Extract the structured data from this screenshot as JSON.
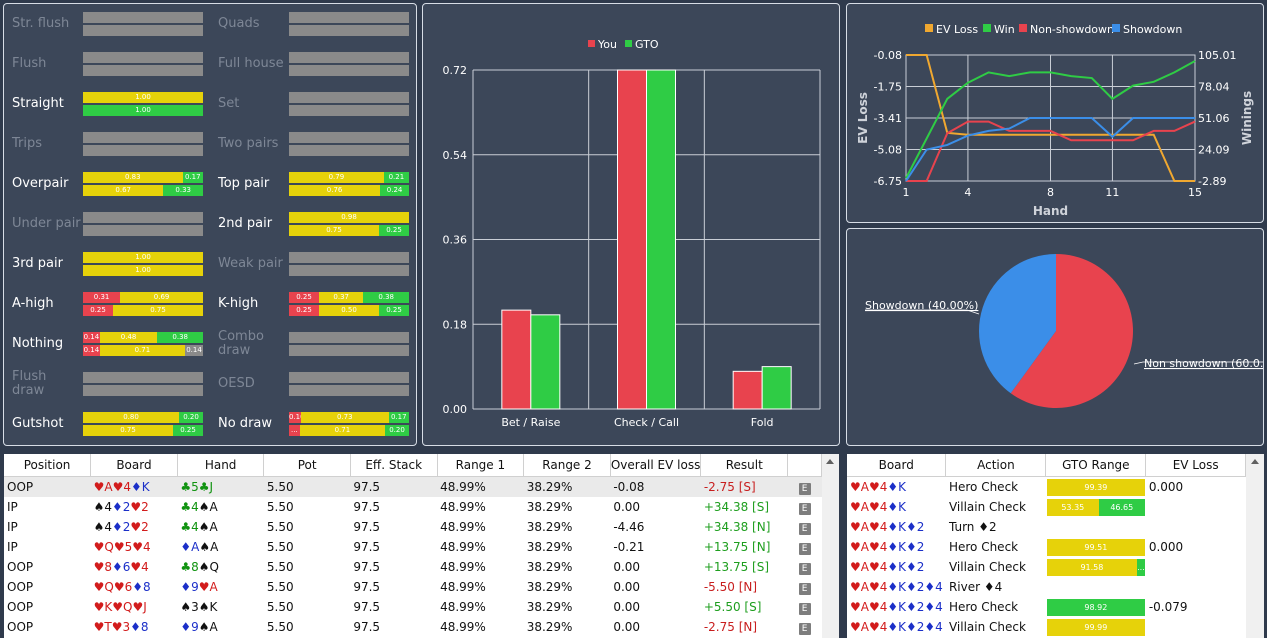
{
  "colors": {
    "you": "#e8434e",
    "gto": "#2fcc45",
    "yellow": "#e6d20a",
    "red": "#e8434e",
    "green": "#2fcc45",
    "grey": "#8a8a8a",
    "ev_loss": "#f0a830",
    "win": "#2fcc45",
    "non_showdown": "#e8434e",
    "showdown": "#3b8ee8"
  },
  "categories": [
    {
      "label": "Str. flush",
      "dim": true,
      "bars": [
        [
          [
            "gr",
            1,
            ""
          ]
        ],
        [
          [
            "gr",
            1,
            ""
          ]
        ]
      ]
    },
    {
      "label": "Quads",
      "dim": true,
      "bars": [
        [
          [
            "gr",
            1,
            ""
          ]
        ],
        [
          [
            "gr",
            1,
            ""
          ]
        ]
      ]
    },
    {
      "label": "Flush",
      "dim": true,
      "bars": [
        [
          [
            "gr",
            1,
            ""
          ]
        ],
        [
          [
            "gr",
            1,
            ""
          ]
        ]
      ]
    },
    {
      "label": "Full house",
      "dim": true,
      "bars": [
        [
          [
            "gr",
            1,
            ""
          ]
        ],
        [
          [
            "gr",
            1,
            ""
          ]
        ]
      ]
    },
    {
      "label": "Straight",
      "dim": false,
      "bars": [
        [
          [
            "y",
            1,
            "1.00"
          ]
        ],
        [
          [
            "g",
            1,
            "1.00"
          ]
        ]
      ]
    },
    {
      "label": "Set",
      "dim": true,
      "bars": [
        [
          [
            "gr",
            1,
            ""
          ]
        ],
        [
          [
            "gr",
            1,
            ""
          ]
        ]
      ]
    },
    {
      "label": "Trips",
      "dim": true,
      "bars": [
        [
          [
            "gr",
            1,
            ""
          ]
        ],
        [
          [
            "gr",
            1,
            ""
          ]
        ]
      ]
    },
    {
      "label": "Two pairs",
      "dim": true,
      "bars": [
        [
          [
            "gr",
            1,
            ""
          ]
        ],
        [
          [
            "gr",
            1,
            ""
          ]
        ]
      ]
    },
    {
      "label": "Overpair",
      "dim": false,
      "bars": [
        [
          [
            "y",
            0.83,
            "0.83"
          ],
          [
            "g",
            0.17,
            "0.17"
          ]
        ],
        [
          [
            "y",
            0.67,
            "0.67"
          ],
          [
            "g",
            0.33,
            "0.33"
          ]
        ]
      ]
    },
    {
      "label": "Top pair",
      "dim": false,
      "bars": [
        [
          [
            "y",
            0.79,
            "0.79"
          ],
          [
            "g",
            0.21,
            "0.21"
          ]
        ],
        [
          [
            "y",
            0.76,
            "0.76"
          ],
          [
            "g",
            0.24,
            "0.24"
          ]
        ]
      ]
    },
    {
      "label": "Under pair",
      "dim": true,
      "bars": [
        [
          [
            "gr",
            1,
            ""
          ]
        ],
        [
          [
            "gr",
            1,
            ""
          ]
        ]
      ]
    },
    {
      "label": "2nd pair",
      "dim": false,
      "bars": [
        [
          [
            "y",
            1,
            "0.98"
          ]
        ],
        [
          [
            "y",
            0.75,
            "0.75"
          ],
          [
            "g",
            0.25,
            "0.25"
          ]
        ]
      ]
    },
    {
      "label": "3rd pair",
      "dim": false,
      "bars": [
        [
          [
            "y",
            1,
            "1.00"
          ]
        ],
        [
          [
            "y",
            1,
            "1.00"
          ]
        ]
      ]
    },
    {
      "label": "Weak pair",
      "dim": true,
      "bars": [
        [
          [
            "gr",
            1,
            ""
          ]
        ],
        [
          [
            "gr",
            1,
            ""
          ]
        ]
      ]
    },
    {
      "label": "A-high",
      "dim": false,
      "bars": [
        [
          [
            "r",
            0.31,
            "0.31"
          ],
          [
            "y",
            0.69,
            "0.69"
          ]
        ],
        [
          [
            "r",
            0.25,
            "0.25"
          ],
          [
            "y",
            0.75,
            "0.75"
          ]
        ]
      ]
    },
    {
      "label": "K-high",
      "dim": false,
      "bars": [
        [
          [
            "r",
            0.25,
            "0.25"
          ],
          [
            "y",
            0.37,
            "0.37"
          ],
          [
            "g",
            0.38,
            "0.38"
          ]
        ],
        [
          [
            "r",
            0.25,
            "0.25"
          ],
          [
            "y",
            0.5,
            "0.50"
          ],
          [
            "g",
            0.25,
            "0.25"
          ]
        ]
      ]
    },
    {
      "label": "Nothing",
      "dim": false,
      "bars": [
        [
          [
            "r",
            0.14,
            "0.14"
          ],
          [
            "y",
            0.48,
            "0.48"
          ],
          [
            "g",
            0.38,
            "0.38"
          ]
        ],
        [
          [
            "r",
            0.14,
            "0.14"
          ],
          [
            "y",
            0.71,
            "0.71"
          ],
          [
            "gr",
            0.15,
            "0.14"
          ]
        ]
      ]
    },
    {
      "label": "Combo draw",
      "dim": true,
      "bars": [
        [
          [
            "gr",
            1,
            ""
          ]
        ],
        [
          [
            "gr",
            1,
            ""
          ]
        ]
      ]
    },
    {
      "label": "Flush draw",
      "dim": true,
      "bars": [
        [
          [
            "gr",
            1,
            ""
          ]
        ],
        [
          [
            "gr",
            1,
            ""
          ]
        ]
      ]
    },
    {
      "label": "OESD",
      "dim": true,
      "bars": [
        [
          [
            "gr",
            1,
            ""
          ]
        ],
        [
          [
            "gr",
            1,
            ""
          ]
        ]
      ]
    },
    {
      "label": "Gutshot",
      "dim": false,
      "bars": [
        [
          [
            "y",
            0.8,
            "0.80"
          ],
          [
            "g",
            0.2,
            "0.20"
          ]
        ],
        [
          [
            "y",
            0.75,
            "0.75"
          ],
          [
            "g",
            0.25,
            "0.25"
          ]
        ]
      ]
    },
    {
      "label": "No draw",
      "dim": false,
      "bars": [
        [
          [
            "r",
            0.1,
            "0.10"
          ],
          [
            "y",
            0.73,
            "0.73"
          ],
          [
            "g",
            0.17,
            "0.17"
          ]
        ],
        [
          [
            "r",
            0.09,
            "..."
          ],
          [
            "y",
            0.71,
            "0.71"
          ],
          [
            "g",
            0.2,
            "0.20"
          ]
        ]
      ]
    }
  ],
  "chart_data": [
    {
      "type": "bar",
      "categories": [
        "Bet / Raise",
        "Check / Call",
        "Fold"
      ],
      "series": [
        {
          "name": "You",
          "values": [
            0.21,
            0.72,
            0.08
          ]
        },
        {
          "name": "GTO",
          "values": [
            0.2,
            0.72,
            0.09
          ]
        }
      ],
      "yticks": [
        "0.00",
        "0.18",
        "0.36",
        "0.54",
        "0.72"
      ],
      "ylim": [
        0,
        0.72
      ]
    },
    {
      "type": "line",
      "legend": [
        "EV Loss",
        "Win",
        "Non-showdown",
        "Showdown"
      ],
      "ylabel": "EV Loss",
      "y2label": "Winings",
      "xlabel": "Hand",
      "x": [
        1,
        2,
        3,
        4,
        5,
        6,
        7,
        8,
        9,
        10,
        11,
        12,
        13,
        14,
        15
      ],
      "xticks": [
        "1",
        "4",
        "8",
        "11",
        "15"
      ],
      "yticks": [
        "-0.08",
        "-1.75",
        "-3.41",
        "-5.08",
        "-6.75"
      ],
      "y2ticks": [
        "105.01",
        "78.04",
        "51.06",
        "24.09",
        "-2.89"
      ],
      "ylim": [
        -6.75,
        -0.08
      ],
      "y2lim": [
        -2.89,
        105.01
      ],
      "series": [
        {
          "name": "EV Loss",
          "axis": "left",
          "values": [
            -0.08,
            -0.08,
            -4.2,
            -4.3,
            -4.3,
            -4.3,
            -4.3,
            -4.3,
            -4.3,
            -4.3,
            -4.3,
            -4.3,
            -4.3,
            -6.75,
            -6.75
          ]
        },
        {
          "name": "Win",
          "axis": "left",
          "values": [
            -6.6,
            -4.5,
            -2.4,
            -1.55,
            -1.0,
            -1.2,
            -1.0,
            -1.0,
            -1.2,
            -1.3,
            -2.4,
            -1.7,
            -1.5,
            -1.0,
            -0.4
          ]
        },
        {
          "name": "Non-showdown",
          "axis": "right",
          "values": [
            -2.89,
            -2.89,
            38,
            48,
            48,
            40,
            40,
            40,
            32,
            32,
            32,
            32,
            40,
            40,
            48
          ]
        },
        {
          "name": "Showdown",
          "axis": "right",
          "values": [
            -2.89,
            24,
            28,
            36,
            40,
            42,
            51.06,
            51.06,
            51.06,
            51.06,
            35,
            51.06,
            51.06,
            51.06,
            51.06
          ]
        }
      ]
    },
    {
      "type": "pie",
      "slices": [
        {
          "label": "Non showdown (60.0...",
          "value": 60
        },
        {
          "label": "Showdown (40.00%)",
          "value": 40
        }
      ]
    }
  ],
  "hands_table": {
    "headers": [
      "Position",
      "Board",
      "Hand",
      "Pot",
      "Eff. Stack",
      "Range 1",
      "Range 2",
      "Overall EV loss",
      "Result",
      ""
    ],
    "rows": [
      {
        "pos": "OOP",
        "board": [
          [
            "r",
            "♥A"
          ],
          [
            "r",
            "♥4"
          ],
          [
            "b",
            "♦K"
          ]
        ],
        "hand": [
          [
            "g",
            "♣5"
          ],
          [
            "g",
            "♣J"
          ]
        ],
        "pot": "5.50",
        "stack": "97.5",
        "r1": "48.99%",
        "r2": "38.29%",
        "ev": "-0.08",
        "result": "-2.75 [S]",
        "neg": true
      },
      {
        "pos": "IP",
        "board": [
          [
            "k",
            "♠4"
          ],
          [
            "b",
            "♦2"
          ],
          [
            "r",
            "♥2"
          ]
        ],
        "hand": [
          [
            "g",
            "♣4"
          ],
          [
            "k",
            "♠A"
          ]
        ],
        "pot": "5.50",
        "stack": "97.5",
        "r1": "48.99%",
        "r2": "38.29%",
        "ev": "0.00",
        "result": "+34.38 [S]",
        "neg": false
      },
      {
        "pos": "IP",
        "board": [
          [
            "k",
            "♠4"
          ],
          [
            "b",
            "♦2"
          ],
          [
            "r",
            "♥2"
          ]
        ],
        "hand": [
          [
            "g",
            "♣4"
          ],
          [
            "k",
            "♠A"
          ]
        ],
        "pot": "5.50",
        "stack": "97.5",
        "r1": "48.99%",
        "r2": "38.29%",
        "ev": "-4.46",
        "result": "+34.38 [N]",
        "neg": false
      },
      {
        "pos": "IP",
        "board": [
          [
            "r",
            "♥Q"
          ],
          [
            "r",
            "♥5"
          ],
          [
            "r",
            "♥4"
          ]
        ],
        "hand": [
          [
            "b",
            "♦A"
          ],
          [
            "k",
            "♠A"
          ]
        ],
        "pot": "5.50",
        "stack": "97.5",
        "r1": "48.99%",
        "r2": "38.29%",
        "ev": "-0.21",
        "result": "+13.75 [N]",
        "neg": false
      },
      {
        "pos": "OOP",
        "board": [
          [
            "r",
            "♥8"
          ],
          [
            "b",
            "♦6"
          ],
          [
            "r",
            "♥4"
          ]
        ],
        "hand": [
          [
            "g",
            "♣8"
          ],
          [
            "k",
            "♠Q"
          ]
        ],
        "pot": "5.50",
        "stack": "97.5",
        "r1": "48.99%",
        "r2": "38.29%",
        "ev": "0.00",
        "result": "+13.75 [S]",
        "neg": false
      },
      {
        "pos": "OOP",
        "board": [
          [
            "r",
            "♥Q"
          ],
          [
            "r",
            "♥6"
          ],
          [
            "b",
            "♦8"
          ]
        ],
        "hand": [
          [
            "b",
            "♦9"
          ],
          [
            "r",
            "♥A"
          ]
        ],
        "pot": "5.50",
        "stack": "97.5",
        "r1": "48.99%",
        "r2": "38.29%",
        "ev": "0.00",
        "result": "-5.50 [N]",
        "neg": true
      },
      {
        "pos": "OOP",
        "board": [
          [
            "r",
            "♥K"
          ],
          [
            "r",
            "♥Q"
          ],
          [
            "r",
            "♥J"
          ]
        ],
        "hand": [
          [
            "k",
            "♠3"
          ],
          [
            "k",
            "♠K"
          ]
        ],
        "pot": "5.50",
        "stack": "97.5",
        "r1": "48.99%",
        "r2": "38.29%",
        "ev": "0.00",
        "result": "+5.50 [S]",
        "neg": false
      },
      {
        "pos": "OOP",
        "board": [
          [
            "r",
            "♥T"
          ],
          [
            "r",
            "♥3"
          ],
          [
            "b",
            "♦8"
          ]
        ],
        "hand": [
          [
            "b",
            "♦9"
          ],
          [
            "k",
            "♠A"
          ]
        ],
        "pot": "5.50",
        "stack": "97.5",
        "r1": "48.99%",
        "r2": "38.29%",
        "ev": "0.00",
        "result": "-2.75 [N]",
        "neg": true
      }
    ],
    "e_label": "E"
  },
  "action_table": {
    "headers": [
      "Board",
      "Action",
      "GTO Range",
      "EV Loss"
    ],
    "rows": [
      {
        "board": [
          [
            "r",
            "♥A"
          ],
          [
            "r",
            "♥4"
          ],
          [
            "b",
            "♦K"
          ]
        ],
        "action": "Hero Check",
        "range": [
          [
            "y",
            1,
            "99.39"
          ]
        ],
        "ev": "0.000"
      },
      {
        "board": [
          [
            "r",
            "♥A"
          ],
          [
            "r",
            "♥4"
          ],
          [
            "b",
            "♦K"
          ]
        ],
        "action": "Villain Check",
        "range": [
          [
            "y",
            0.53,
            "53.35"
          ],
          [
            "g",
            0.47,
            "46.65"
          ]
        ],
        "ev": ""
      },
      {
        "board": [
          [
            "r",
            "♥A"
          ],
          [
            "r",
            "♥4"
          ],
          [
            "b",
            "♦K"
          ],
          [
            "b",
            "♦2"
          ]
        ],
        "action": "Turn ♦2",
        "range": [],
        "ev": ""
      },
      {
        "board": [
          [
            "r",
            "♥A"
          ],
          [
            "r",
            "♥4"
          ],
          [
            "b",
            "♦K"
          ],
          [
            "b",
            "♦2"
          ]
        ],
        "action": "Hero Check",
        "range": [
          [
            "y",
            1,
            "99.51"
          ]
        ],
        "ev": "0.000"
      },
      {
        "board": [
          [
            "r",
            "♥A"
          ],
          [
            "r",
            "♥4"
          ],
          [
            "b",
            "♦K"
          ],
          [
            "b",
            "♦2"
          ]
        ],
        "action": "Villain Check",
        "range": [
          [
            "y",
            0.92,
            "91.58"
          ],
          [
            "g",
            0.08,
            "..."
          ]
        ],
        "ev": ""
      },
      {
        "board": [
          [
            "r",
            "♥A"
          ],
          [
            "r",
            "♥4"
          ],
          [
            "b",
            "♦K"
          ],
          [
            "b",
            "♦2"
          ],
          [
            "b",
            "♦4"
          ]
        ],
        "action": "River ♦4",
        "range": [],
        "ev": ""
      },
      {
        "board": [
          [
            "r",
            "♥A"
          ],
          [
            "r",
            "♥4"
          ],
          [
            "b",
            "♦K"
          ],
          [
            "b",
            "♦2"
          ],
          [
            "b",
            "♦4"
          ]
        ],
        "action": "Hero Check",
        "range": [
          [
            "g",
            1,
            "98.92"
          ]
        ],
        "ev": "-0.079"
      },
      {
        "board": [
          [
            "r",
            "♥A"
          ],
          [
            "r",
            "♥4"
          ],
          [
            "b",
            "♦K"
          ],
          [
            "b",
            "♦2"
          ],
          [
            "b",
            "♦4"
          ]
        ],
        "action": "Villain Check",
        "range": [
          [
            "y",
            1,
            "99.99"
          ]
        ],
        "ev": ""
      }
    ]
  }
}
